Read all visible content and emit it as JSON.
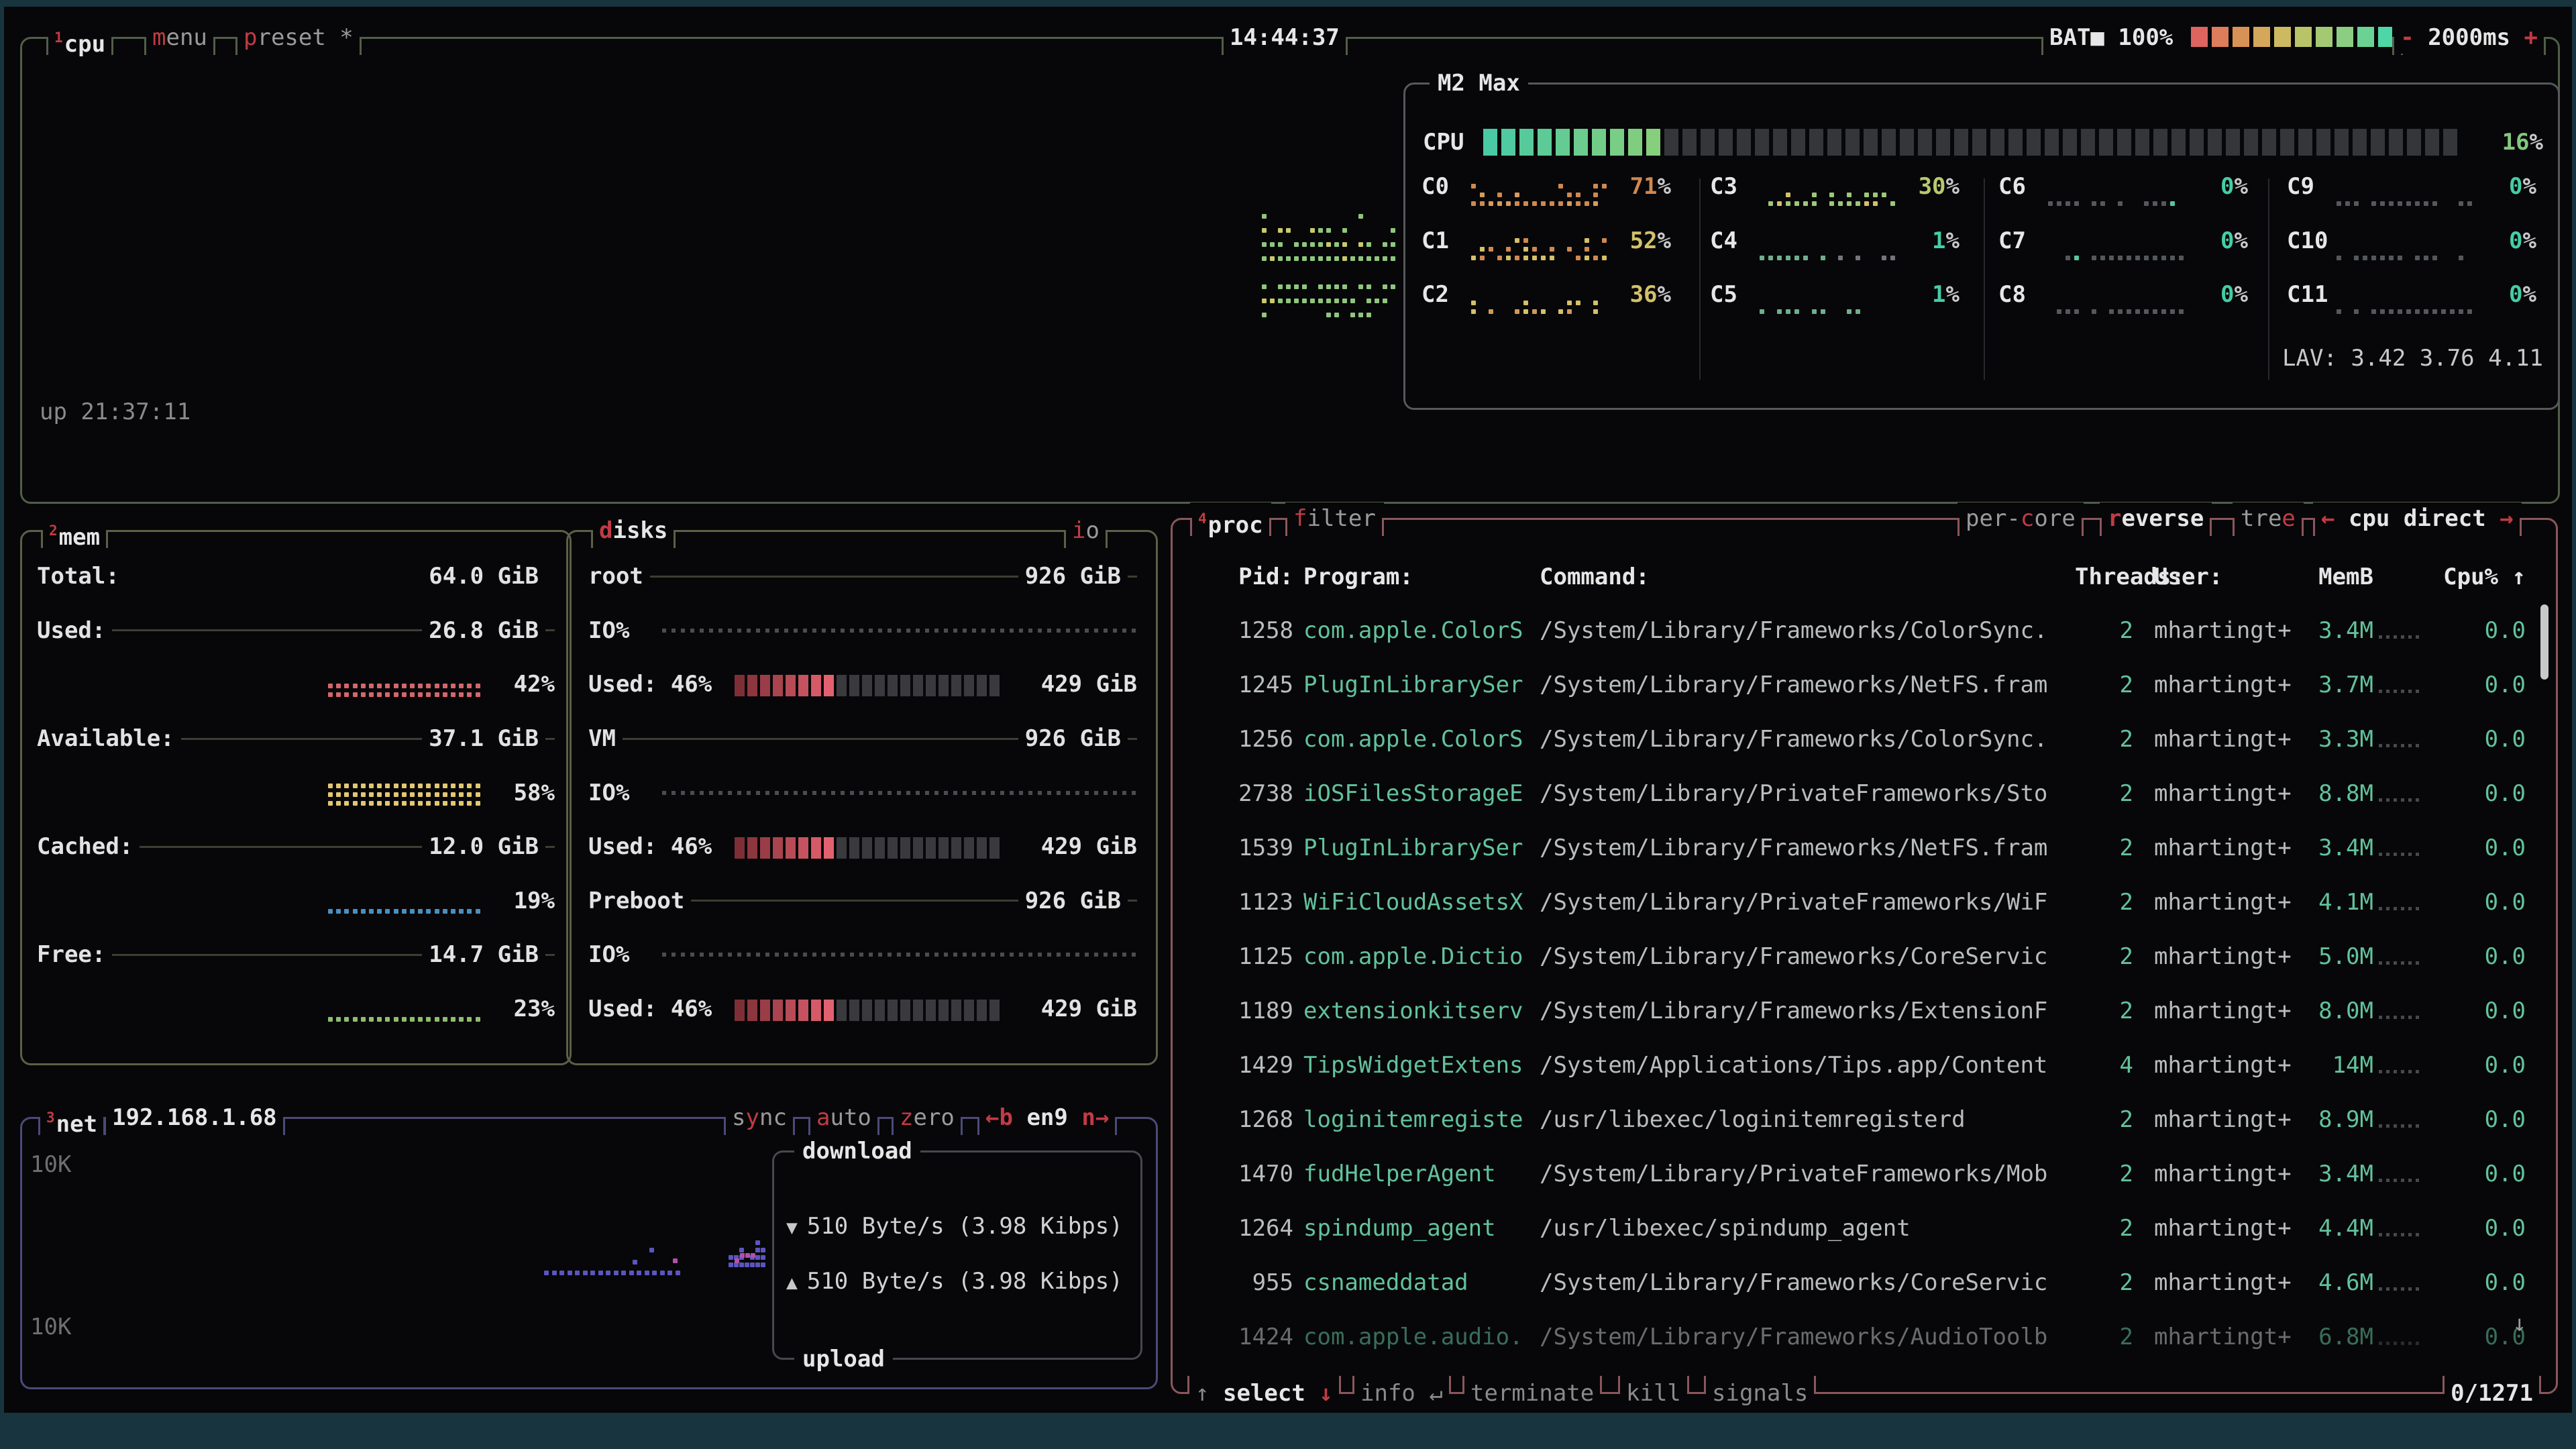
{
  "icons": {
    "up": "↑",
    "down": "↓",
    "enter": "↵",
    "left": "←",
    "right": "→",
    "down_tri": "▼",
    "up_tri": "▲",
    "square": "■",
    "scroll_up": "↑",
    "scroll_down": "↓"
  },
  "colors": {
    "bg": "#070709",
    "frame": "#18343e",
    "border_cpu": "#515e49",
    "border_inner": "#56585a",
    "border_mem": "#5c6046",
    "border_net": "#4c4a78",
    "border_proc": "#8a575c",
    "border_download": "#47474f",
    "accent_red": "#c23b44",
    "teal": "#45cda4",
    "proc_green": "#62c29c",
    "bar_fill_start": "#49c9a4",
    "bar_fill_end": "#86cf7c",
    "bar_empty": "#35363a",
    "disk_fill_start": "#7e2f36",
    "disk_fill_end": "#e2616f",
    "disk_empty": "#3a3a3e",
    "net_graph": "#5b55c0",
    "net_graph2": "#b351a9",
    "battery_blocks": [
      "#de6460",
      "#dd7d5b",
      "#d99255",
      "#d5a75b",
      "#cdba60",
      "#b9c468",
      "#a4c973",
      "#8bce81",
      "#6cd293",
      "#4fd6a7"
    ]
  },
  "topbar": {
    "cpu_tab": {
      "text": "cpu",
      "hot": -1,
      "sup": "1"
    },
    "menu": {
      "text": "menu",
      "hot": 0
    },
    "preset": {
      "text": "preset *",
      "hot": 0
    },
    "clock": "14:44:37",
    "battery_label": "BAT",
    "battery_pct": "100%",
    "interval_minus": "-",
    "interval_value": "2000ms",
    "interval_plus": "+"
  },
  "cpu_box": {
    "model": "M2 Max",
    "uptime": "up 21:37:11",
    "lav": "LAV: 3.42 3.76 4.11",
    "total": {
      "label": "CPU",
      "pct": "16%",
      "segments": 54,
      "filled": 10
    },
    "cores": [
      {
        "name": "C0",
        "pct": "71%",
        "pct_color": "#d0884f",
        "g_colors": [
          "#d0884f",
          "#d89b5e"
        ],
        "g_rows": 3,
        "g_density": 0.93
      },
      {
        "name": "C1",
        "pct": "52%",
        "pct_color": "#d4c068",
        "g_colors": [
          "#d0884f",
          "#d4c068"
        ],
        "g_rows": 3,
        "g_density": 0.72
      },
      {
        "name": "C2",
        "pct": "36%",
        "pct_color": "#d4c068",
        "g_colors": [
          "#d4c068",
          "#cf9a58"
        ],
        "g_rows": 2,
        "g_density": 0.62
      },
      {
        "name": "C3",
        "pct": "30%",
        "pct_color": "#b8c96e",
        "g_colors": [
          "#9cc878",
          "#d4c068"
        ],
        "g_rows": 2,
        "g_density": 0.72
      },
      {
        "name": "C4",
        "pct": "1%",
        "pct_color": "#45cda4",
        "g_colors": [
          "#6fae8c",
          "#73777a"
        ],
        "g_rows": 1,
        "g_density": 0.5
      },
      {
        "name": "C5",
        "pct": "1%",
        "pct_color": "#45cda4",
        "g_colors": [
          "#6fae8c",
          "#73777a"
        ],
        "g_rows": 1,
        "g_density": 0.5
      },
      {
        "name": "C6",
        "pct": "0%",
        "pct_color": "#45cda4",
        "g_colors": [
          "#54585a",
          "#54585a"
        ],
        "g_rows": 1,
        "g_density": 0.82,
        "g_accent": "#57c79e"
      },
      {
        "name": "C7",
        "pct": "0%",
        "pct_color": "#45cda4",
        "g_colors": [
          "#54585a",
          "#54585a"
        ],
        "g_rows": 1,
        "g_density": 0.82,
        "g_accent": "#57c79e"
      },
      {
        "name": "C8",
        "pct": "0%",
        "pct_color": "#45cda4",
        "g_colors": [
          "#54585a",
          "#54585a"
        ],
        "g_rows": 1,
        "g_density": 0.82
      },
      {
        "name": "C9",
        "pct": "0%",
        "pct_color": "#45cda4",
        "g_colors": [
          "#54585a",
          "#54585a"
        ],
        "g_rows": 1,
        "g_density": 0.82
      },
      {
        "name": "C10",
        "pct": "0%",
        "pct_color": "#45cda4",
        "g_colors": [
          "#54585a",
          "#54585a"
        ],
        "g_rows": 1,
        "g_density": 0.82
      },
      {
        "name": "C11",
        "pct": "0%",
        "pct_color": "#45cda4",
        "g_colors": [
          "#54585a",
          "#54585a"
        ],
        "g_rows": 1,
        "g_density": 0.82
      }
    ]
  },
  "mem": {
    "title": {
      "text": "mem",
      "hot": -1,
      "sup": "2"
    },
    "rows": [
      {
        "type": "label",
        "label": "Total:",
        "value": "64.0 GiB",
        "divider": false
      },
      {
        "type": "label",
        "label": "Used:",
        "value": "26.8 GiB",
        "divider": true
      },
      {
        "type": "graph",
        "pct": "42%",
        "color": "#d4666b",
        "rows": 2
      },
      {
        "type": "label",
        "label": "Available:",
        "value": "37.1 GiB",
        "divider": true
      },
      {
        "type": "graph",
        "pct": "58%",
        "color": "#e3c770",
        "rows": 3
      },
      {
        "type": "label",
        "label": "Cached:",
        "value": "12.0 GiB",
        "divider": true
      },
      {
        "type": "graph",
        "pct": "19%",
        "color": "#4a8fc0",
        "rows": 1
      },
      {
        "type": "label",
        "label": "Free:",
        "value": "14.7 GiB",
        "divider": true
      },
      {
        "type": "graph",
        "pct": "23%",
        "color": "#8fbd6f",
        "rows": 1
      }
    ]
  },
  "disks": {
    "title": {
      "text": "disks",
      "hot": 0
    },
    "io_tab": {
      "text": "io",
      "hot": 0
    },
    "sections": [
      {
        "name": "root",
        "size": "926 GiB",
        "io_label": "IO%",
        "used_label": "Used: 46%",
        "used_value": "429 GiB",
        "filled": 8,
        "segments": 21
      },
      {
        "name": "VM",
        "size": "926 GiB",
        "io_label": "IO%",
        "used_label": "Used: 46%",
        "used_value": "429 GiB",
        "filled": 8,
        "segments": 21
      },
      {
        "name": "Preboot",
        "size": "926 GiB",
        "io_label": "IO%",
        "used_label": "Used: 46%",
        "used_value": "429 GiB",
        "filled": 8,
        "segments": 21
      }
    ]
  },
  "net": {
    "title": {
      "text": "net",
      "hot": -1,
      "sup": "3"
    },
    "ip": "192.168.1.68",
    "sync": {
      "text": "sync",
      "hot": 1
    },
    "auto": {
      "text": "auto",
      "hot": 0
    },
    "zero": {
      "text": "zero",
      "hot": 0
    },
    "b_left": "←b",
    "iface": "en9",
    "n_right": "n→",
    "scale_top": "10K",
    "scale_bottom": "10K",
    "download_title": "download",
    "download_value": "510 Byte/s (3.98 Kibps)",
    "upload_title": "upload",
    "upload_value": "510 Byte/s (3.98 Kibps)"
  },
  "proc": {
    "title": {
      "text": "proc",
      "hot": -1,
      "sup": "4"
    },
    "filter": {
      "text": "filter",
      "hot": 0
    },
    "per_core": {
      "text": "per-core",
      "hot": 4
    },
    "reverse": {
      "text": "reverse",
      "hot": 0
    },
    "tree": {
      "text": "tree",
      "hot": 3
    },
    "cpu_direct": "cpu direct",
    "headers": {
      "pid": "Pid:",
      "program": "Program:",
      "command": "Command:",
      "threads": "Threads:",
      "user": "User:",
      "mem": "MemB",
      "cpu": "Cpu%"
    },
    "processes": [
      {
        "pid": "1258",
        "program": "com.apple.ColorS",
        "command": "/System/Library/Frameworks/ColorSync.",
        "threads": "2",
        "user": "mhartingt+",
        "mem": "3.4M",
        "cpu": "0.0"
      },
      {
        "pid": "1245",
        "program": "PlugInLibrarySer",
        "command": "/System/Library/Frameworks/NetFS.fram",
        "threads": "2",
        "user": "mhartingt+",
        "mem": "3.7M",
        "cpu": "0.0"
      },
      {
        "pid": "1256",
        "program": "com.apple.ColorS",
        "command": "/System/Library/Frameworks/ColorSync.",
        "threads": "2",
        "user": "mhartingt+",
        "mem": "3.3M",
        "cpu": "0.0"
      },
      {
        "pid": "2738",
        "program": "iOSFilesStorageE",
        "command": "/System/Library/PrivateFrameworks/Sto",
        "threads": "2",
        "user": "mhartingt+",
        "mem": "8.8M",
        "cpu": "0.0"
      },
      {
        "pid": "1539",
        "program": "PlugInLibrarySer",
        "command": "/System/Library/Frameworks/NetFS.fram",
        "threads": "2",
        "user": "mhartingt+",
        "mem": "3.4M",
        "cpu": "0.0"
      },
      {
        "pid": "1123",
        "program": "WiFiCloudAssetsX",
        "command": "/System/Library/PrivateFrameworks/WiF",
        "threads": "2",
        "user": "mhartingt+",
        "mem": "4.1M",
        "cpu": "0.0"
      },
      {
        "pid": "1125",
        "program": "com.apple.Dictio",
        "command": "/System/Library/Frameworks/CoreServic",
        "threads": "2",
        "user": "mhartingt+",
        "mem": "5.0M",
        "cpu": "0.0"
      },
      {
        "pid": "1189",
        "program": "extensionkitserv",
        "command": "/System/Library/Frameworks/ExtensionF",
        "threads": "2",
        "user": "mhartingt+",
        "mem": "8.0M",
        "cpu": "0.0"
      },
      {
        "pid": "1429",
        "program": "TipsWidgetExtens",
        "command": "/System/Applications/Tips.app/Content",
        "threads": "4",
        "user": "mhartingt+",
        "mem": "14M",
        "cpu": "0.0"
      },
      {
        "pid": "1268",
        "program": "loginitemregiste",
        "command": "/usr/libexec/loginitemregisterd",
        "threads": "2",
        "user": "mhartingt+",
        "mem": "8.9M",
        "cpu": "0.0"
      },
      {
        "pid": "1470",
        "program": "fudHelperAgent",
        "command": "/System/Library/PrivateFrameworks/Mob",
        "threads": "2",
        "user": "mhartingt+",
        "mem": "3.4M",
        "cpu": "0.0"
      },
      {
        "pid": "1264",
        "program": "spindump_agent",
        "command": "/usr/libexec/spindump_agent",
        "threads": "2",
        "user": "mhartingt+",
        "mem": "4.4M",
        "cpu": "0.0"
      },
      {
        "pid": "955",
        "program": "csnameddatad",
        "command": "/System/Library/Frameworks/CoreServic",
        "threads": "2",
        "user": "mhartingt+",
        "mem": "4.6M",
        "cpu": "0.0"
      },
      {
        "pid": "1424",
        "program": "com.apple.audio.",
        "command": "/System/Library/Frameworks/AudioToolb",
        "threads": "2",
        "user": "mhartingt+",
        "mem": "6.8M",
        "cpu": "0.0",
        "dim": true
      }
    ],
    "footer": {
      "select": "select",
      "info": "info",
      "terminate": "terminate",
      "kill": "kill",
      "signals": "signals",
      "count": "0/1271"
    }
  }
}
